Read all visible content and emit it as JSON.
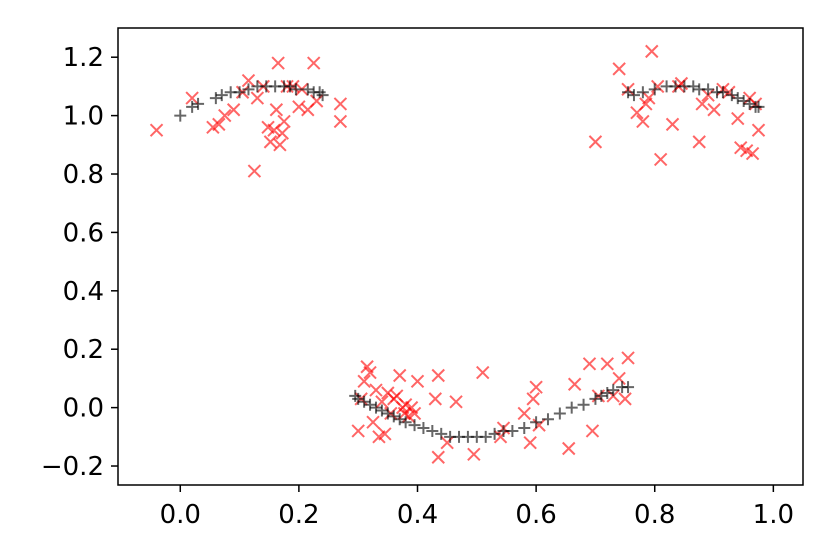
{
  "chart_data": {
    "type": "scatter",
    "title": "",
    "xlabel": "",
    "ylabel": "",
    "xlim": [
      -0.105,
      1.05
    ],
    "ylim": [
      -0.265,
      1.3
    ],
    "x_ticks": [
      0.0,
      0.2,
      0.4,
      0.6,
      0.8,
      1.0
    ],
    "x_tick_labels": [
      "0.0",
      "0.2",
      "0.4",
      "0.6",
      "0.8",
      "1.0"
    ],
    "y_ticks": [
      -0.2,
      0.0,
      0.2,
      0.4,
      0.6,
      0.8,
      1.0,
      1.2
    ],
    "y_tick_labels": [
      "−0.2",
      "0.0",
      "0.2",
      "0.4",
      "0.6",
      "0.8",
      "1.0",
      "1.2"
    ],
    "grid": false,
    "legend": "none",
    "series": [
      {
        "marker": "cross-x",
        "color": "#ff0000",
        "opacity": 0.6,
        "points": [
          [
            -0.04,
            0.95
          ],
          [
            0.02,
            1.06
          ],
          [
            0.055,
            0.96
          ],
          [
            0.065,
            0.97
          ],
          [
            0.075,
            1.0
          ],
          [
            0.09,
            1.02
          ],
          [
            0.105,
            1.08
          ],
          [
            0.115,
            1.12
          ],
          [
            0.125,
            0.81
          ],
          [
            0.13,
            1.06
          ],
          [
            0.14,
            1.1
          ],
          [
            0.148,
            0.96
          ],
          [
            0.152,
            0.91
          ],
          [
            0.158,
            0.95
          ],
          [
            0.162,
            1.02
          ],
          [
            0.165,
            1.18
          ],
          [
            0.168,
            0.9
          ],
          [
            0.172,
            0.94
          ],
          [
            0.175,
            0.98
          ],
          [
            0.18,
            1.1
          ],
          [
            0.19,
            1.1
          ],
          [
            0.2,
            1.03
          ],
          [
            0.205,
            1.09
          ],
          [
            0.215,
            1.02
          ],
          [
            0.225,
            1.18
          ],
          [
            0.23,
            1.05
          ],
          [
            0.27,
            1.04
          ],
          [
            0.27,
            0.98
          ],
          [
            0.3,
            -0.08
          ],
          [
            0.305,
            0.03
          ],
          [
            0.31,
            0.09
          ],
          [
            0.315,
            0.14
          ],
          [
            0.32,
            0.12
          ],
          [
            0.325,
            -0.05
          ],
          [
            0.33,
            0.06
          ],
          [
            0.335,
            -0.1
          ],
          [
            0.34,
            0.02
          ],
          [
            0.345,
            -0.09
          ],
          [
            0.35,
            0.05
          ],
          [
            0.355,
            -0.02
          ],
          [
            0.36,
            0.03
          ],
          [
            0.365,
            0.04
          ],
          [
            0.37,
            0.11
          ],
          [
            0.375,
            0.0
          ],
          [
            0.378,
            -0.02
          ],
          [
            0.38,
            0.01
          ],
          [
            0.385,
            -0.03
          ],
          [
            0.39,
            0.0
          ],
          [
            0.395,
            -0.02
          ],
          [
            0.4,
            0.09
          ],
          [
            0.43,
            0.03
          ],
          [
            0.435,
            0.11
          ],
          [
            0.435,
            -0.17
          ],
          [
            0.45,
            -0.12
          ],
          [
            0.465,
            0.02
          ],
          [
            0.495,
            -0.16
          ],
          [
            0.51,
            0.12
          ],
          [
            0.54,
            -0.1
          ],
          [
            0.545,
            -0.07
          ],
          [
            0.58,
            -0.02
          ],
          [
            0.59,
            -0.12
          ],
          [
            0.595,
            0.03
          ],
          [
            0.6,
            0.07
          ],
          [
            0.605,
            -0.06
          ],
          [
            0.655,
            -0.14
          ],
          [
            0.665,
            0.08
          ],
          [
            0.69,
            0.15
          ],
          [
            0.695,
            -0.08
          ],
          [
            0.705,
            0.04
          ],
          [
            0.72,
            0.15
          ],
          [
            0.73,
            0.04
          ],
          [
            0.74,
            0.1
          ],
          [
            0.75,
            0.03
          ],
          [
            0.755,
            0.17
          ],
          [
            0.7,
            0.91
          ],
          [
            0.74,
            1.16
          ],
          [
            0.755,
            1.09
          ],
          [
            0.77,
            1.01
          ],
          [
            0.78,
            0.98
          ],
          [
            0.785,
            1.04
          ],
          [
            0.79,
            1.06
          ],
          [
            0.795,
            1.22
          ],
          [
            0.805,
            1.1
          ],
          [
            0.81,
            0.85
          ],
          [
            0.83,
            0.97
          ],
          [
            0.84,
            1.1
          ],
          [
            0.845,
            1.11
          ],
          [
            0.875,
            0.91
          ],
          [
            0.88,
            1.04
          ],
          [
            0.89,
            1.07
          ],
          [
            0.9,
            1.02
          ],
          [
            0.915,
            1.09
          ],
          [
            0.925,
            1.08
          ],
          [
            0.94,
            0.99
          ],
          [
            0.945,
            0.89
          ],
          [
            0.955,
            0.88
          ],
          [
            0.96,
            1.06
          ],
          [
            0.965,
            0.87
          ],
          [
            0.97,
            1.04
          ],
          [
            0.975,
            0.95
          ]
        ]
      },
      {
        "marker": "plus",
        "color": "#000000",
        "opacity": 0.6,
        "points": [
          [
            0.0,
            1.0
          ],
          [
            0.02,
            1.03
          ],
          [
            0.03,
            1.04
          ],
          [
            0.06,
            1.06
          ],
          [
            0.07,
            1.07
          ],
          [
            0.085,
            1.08
          ],
          [
            0.1,
            1.08
          ],
          [
            0.115,
            1.09
          ],
          [
            0.13,
            1.1
          ],
          [
            0.145,
            1.1
          ],
          [
            0.16,
            1.1
          ],
          [
            0.175,
            1.1
          ],
          [
            0.185,
            1.1
          ],
          [
            0.195,
            1.09
          ],
          [
            0.215,
            1.09
          ],
          [
            0.225,
            1.08
          ],
          [
            0.235,
            1.08
          ],
          [
            0.24,
            1.07
          ],
          [
            0.295,
            0.04
          ],
          [
            0.3,
            0.03
          ],
          [
            0.31,
            0.02
          ],
          [
            0.32,
            0.01
          ],
          [
            0.33,
            0.0
          ],
          [
            0.34,
            -0.01
          ],
          [
            0.35,
            -0.02
          ],
          [
            0.36,
            -0.03
          ],
          [
            0.37,
            -0.04
          ],
          [
            0.38,
            -0.05
          ],
          [
            0.395,
            -0.06
          ],
          [
            0.41,
            -0.07
          ],
          [
            0.425,
            -0.08
          ],
          [
            0.44,
            -0.09
          ],
          [
            0.455,
            -0.1
          ],
          [
            0.47,
            -0.1
          ],
          [
            0.485,
            -0.1
          ],
          [
            0.5,
            -0.1
          ],
          [
            0.515,
            -0.1
          ],
          [
            0.53,
            -0.09
          ],
          [
            0.545,
            -0.08
          ],
          [
            0.56,
            -0.08
          ],
          [
            0.58,
            -0.07
          ],
          [
            0.6,
            -0.05
          ],
          [
            0.62,
            -0.04
          ],
          [
            0.64,
            -0.02
          ],
          [
            0.66,
            0.0
          ],
          [
            0.68,
            0.01
          ],
          [
            0.7,
            0.03
          ],
          [
            0.71,
            0.04
          ],
          [
            0.72,
            0.05
          ],
          [
            0.73,
            0.06
          ],
          [
            0.745,
            0.07
          ],
          [
            0.755,
            0.07
          ],
          [
            0.755,
            1.08
          ],
          [
            0.765,
            1.07
          ],
          [
            0.78,
            1.08
          ],
          [
            0.8,
            1.09
          ],
          [
            0.82,
            1.1
          ],
          [
            0.835,
            1.1
          ],
          [
            0.85,
            1.1
          ],
          [
            0.865,
            1.1
          ],
          [
            0.875,
            1.09
          ],
          [
            0.89,
            1.09
          ],
          [
            0.905,
            1.08
          ],
          [
            0.915,
            1.08
          ],
          [
            0.93,
            1.07
          ],
          [
            0.94,
            1.06
          ],
          [
            0.95,
            1.05
          ],
          [
            0.96,
            1.04
          ],
          [
            0.97,
            1.03
          ],
          [
            0.975,
            1.03
          ]
        ]
      }
    ]
  }
}
